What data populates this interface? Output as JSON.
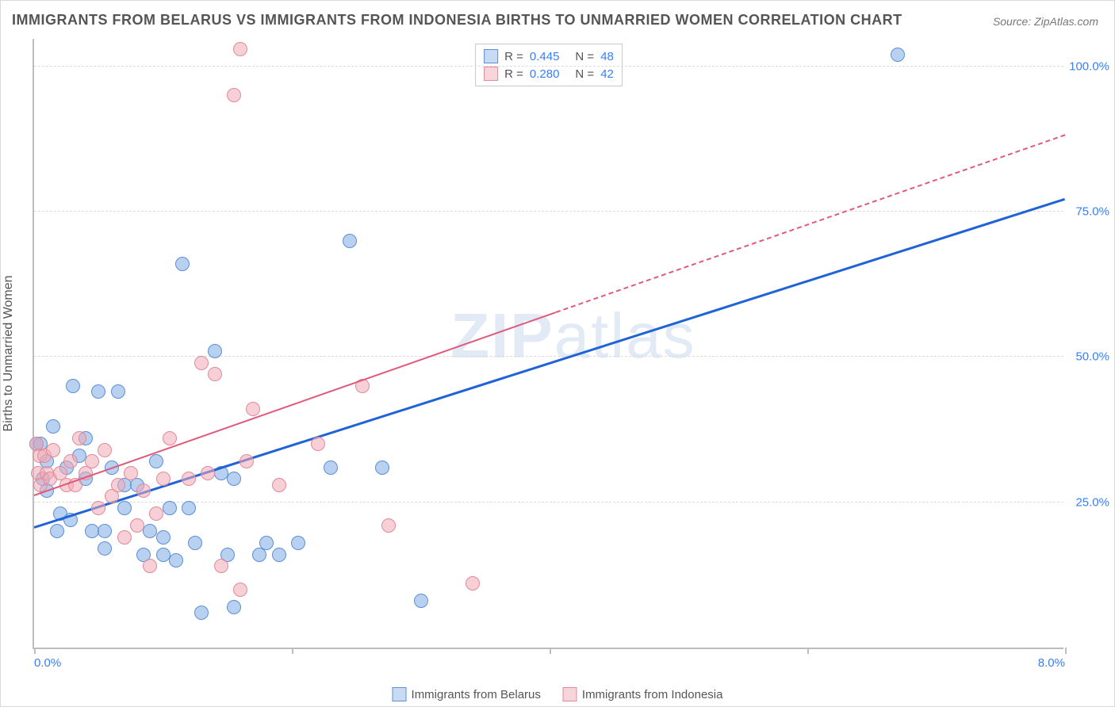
{
  "title": "IMMIGRANTS FROM BELARUS VS IMMIGRANTS FROM INDONESIA BIRTHS TO UNMARRIED WOMEN CORRELATION CHART",
  "source": "Source: ZipAtlas.com",
  "watermark": {
    "bold": "ZIP",
    "thin": "atlas"
  },
  "yaxis_title": "Births to Unmarried Women",
  "chart": {
    "type": "scatter",
    "background_color": "#ffffff",
    "grid_color": "#dcdcdc",
    "axis_color": "#bdbdbd",
    "xlim": [
      0,
      8
    ],
    "ylim": [
      0,
      105
    ],
    "title_fontsize": 18,
    "label_fontsize": 16,
    "tick_fontsize": 15,
    "yticks": [
      25,
      50,
      75,
      100
    ],
    "ytick_labels": [
      "25.0%",
      "50.0%",
      "75.0%",
      "100.0%"
    ],
    "xticks": [
      0,
      2,
      4,
      6,
      8
    ],
    "xtick_labels": {
      "0": "0.0%",
      "8": "8.0%"
    }
  },
  "stats_legend": [
    {
      "swatch_fill": "#c7dbf5",
      "swatch_border": "#5b8fd6",
      "r_label": "R =",
      "r_value": "0.445",
      "n_label": "N =",
      "n_value": "48"
    },
    {
      "swatch_fill": "#f8d4db",
      "swatch_border": "#e28997",
      "r_label": "R =",
      "r_value": "0.280",
      "n_label": "N =",
      "n_value": "42"
    }
  ],
  "series_legend": [
    {
      "swatch_fill": "#c7dbf5",
      "swatch_border": "#5b8fd6",
      "label": "Immigrants from Belarus"
    },
    {
      "swatch_fill": "#f8d4db",
      "swatch_border": "#e28997",
      "label": "Immigrants from Indonesia"
    }
  ],
  "series": [
    {
      "name": "Immigrants from Belarus",
      "color_fill": "rgba(128, 172, 227, 0.55)",
      "color_border": "#5b8fd6",
      "marker_radius": 9,
      "points": [
        [
          0.02,
          35
        ],
        [
          0.05,
          35
        ],
        [
          0.07,
          29
        ],
        [
          0.1,
          27
        ],
        [
          0.1,
          32
        ],
        [
          0.15,
          38
        ],
        [
          0.18,
          20
        ],
        [
          0.2,
          23
        ],
        [
          0.25,
          31
        ],
        [
          0.28,
          22
        ],
        [
          0.3,
          45
        ],
        [
          0.35,
          33
        ],
        [
          0.4,
          29
        ],
        [
          0.4,
          36
        ],
        [
          0.45,
          20
        ],
        [
          0.5,
          44
        ],
        [
          0.55,
          20
        ],
        [
          0.55,
          17
        ],
        [
          0.6,
          31
        ],
        [
          0.65,
          44
        ],
        [
          0.7,
          24
        ],
        [
          0.7,
          28
        ],
        [
          0.8,
          28
        ],
        [
          0.85,
          16
        ],
        [
          0.9,
          20
        ],
        [
          0.95,
          32
        ],
        [
          1.0,
          16
        ],
        [
          1.0,
          19
        ],
        [
          1.05,
          24
        ],
        [
          1.1,
          15
        ],
        [
          1.15,
          66
        ],
        [
          1.2,
          24
        ],
        [
          1.25,
          18
        ],
        [
          1.3,
          6
        ],
        [
          1.4,
          51
        ],
        [
          1.45,
          30
        ],
        [
          1.5,
          16
        ],
        [
          1.55,
          7
        ],
        [
          1.55,
          29
        ],
        [
          1.75,
          16
        ],
        [
          1.8,
          18
        ],
        [
          1.9,
          16
        ],
        [
          2.05,
          18
        ],
        [
          2.3,
          31
        ],
        [
          2.45,
          70
        ],
        [
          2.7,
          31
        ],
        [
          3.0,
          8
        ],
        [
          6.7,
          102
        ]
      ],
      "trend": {
        "color": "#1f63d6",
        "width": 3,
        "style": "solid",
        "x1": 0.0,
        "y1": 20.5,
        "x2": 8.0,
        "y2": 77.0
      }
    },
    {
      "name": "Immigrants from Indonesia",
      "color_fill": "rgba(240, 170, 183, 0.55)",
      "color_border": "#e28997",
      "marker_radius": 9,
      "points": [
        [
          0.02,
          35
        ],
        [
          0.03,
          30
        ],
        [
          0.04,
          33
        ],
        [
          0.05,
          28
        ],
        [
          0.08,
          33
        ],
        [
          0.1,
          30
        ],
        [
          0.12,
          29
        ],
        [
          0.15,
          34
        ],
        [
          0.2,
          30
        ],
        [
          0.25,
          28
        ],
        [
          0.28,
          32
        ],
        [
          0.32,
          28
        ],
        [
          0.35,
          36
        ],
        [
          0.4,
          30
        ],
        [
          0.45,
          32
        ],
        [
          0.5,
          24
        ],
        [
          0.55,
          34
        ],
        [
          0.6,
          26
        ],
        [
          0.65,
          28
        ],
        [
          0.7,
          19
        ],
        [
          0.75,
          30
        ],
        [
          0.8,
          21
        ],
        [
          0.85,
          27
        ],
        [
          0.9,
          14
        ],
        [
          0.95,
          23
        ],
        [
          1.0,
          29
        ],
        [
          1.05,
          36
        ],
        [
          1.2,
          29
        ],
        [
          1.3,
          49
        ],
        [
          1.35,
          30
        ],
        [
          1.4,
          47
        ],
        [
          1.45,
          14
        ],
        [
          1.55,
          95
        ],
        [
          1.6,
          10
        ],
        [
          1.6,
          103
        ],
        [
          1.65,
          32
        ],
        [
          1.7,
          41
        ],
        [
          1.9,
          28
        ],
        [
          2.2,
          35
        ],
        [
          2.55,
          45
        ],
        [
          2.75,
          21
        ],
        [
          3.4,
          11
        ]
      ],
      "trend": {
        "color": "#e05a7a",
        "width": 2,
        "style": "solid",
        "x1": 0.0,
        "y1": 26.0,
        "x2": 4.05,
        "y2": 57.5,
        "extrapolate": {
          "style": "dashed",
          "x1": 4.05,
          "y1": 57.5,
          "x2": 8.0,
          "y2": 88.0
        }
      }
    }
  ]
}
